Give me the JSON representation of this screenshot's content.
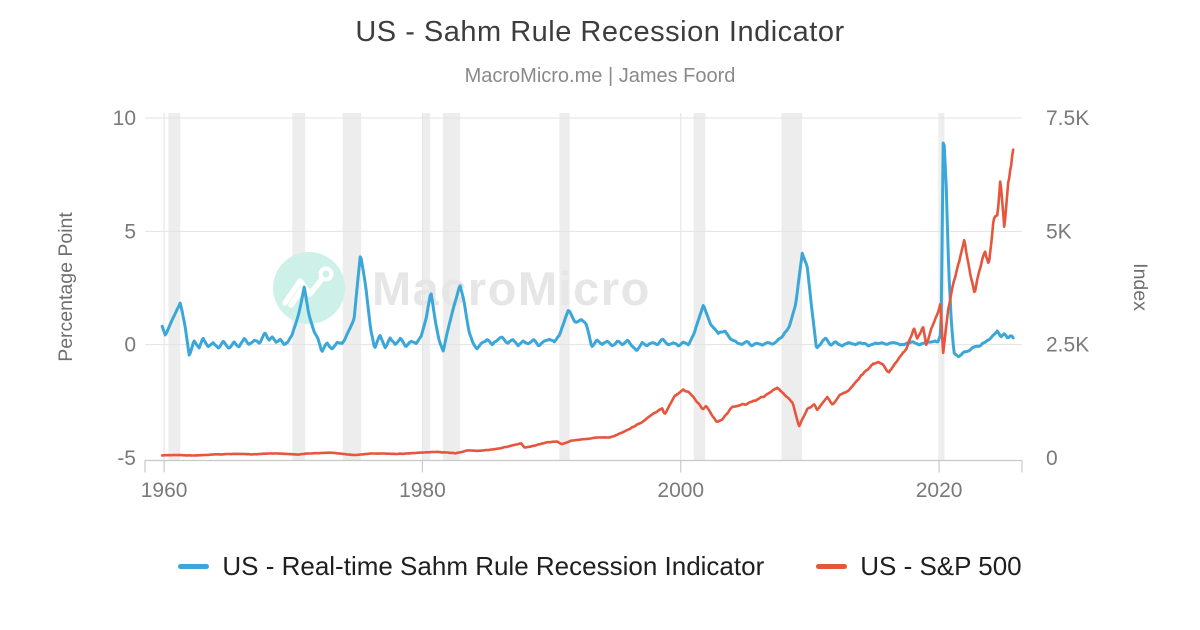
{
  "header": {
    "title": "US - Sahm Rule Recession Indicator",
    "subtitle": "MacroMicro.me | James Foord"
  },
  "watermark": {
    "text": "MacroMicro",
    "icon": "mountain-chart-logo",
    "circle_color": "#cdf1e8",
    "text_color": "#e6e6e6"
  },
  "colors": {
    "sahm_blue": "#3ba7d9",
    "sp500_red": "#e6563d",
    "gridline": "#e3e3e3",
    "recession_band": "#ededed",
    "axis_line": "#c9c9c9",
    "tick_text": "#7a7a7a",
    "axis_title_text": "#6f6f6f"
  },
  "legend": {
    "items": [
      {
        "label": "US - Real-time Sahm Rule Recession Indicator",
        "color": "#3ba7d9"
      },
      {
        "label": "US - S&P 500",
        "color": "#e6563d"
      }
    ]
  },
  "chart_data": {
    "type": "line",
    "title": "US - Sahm Rule Recession Indicator",
    "subtitle": "MacroMicro.me | James Foord",
    "x_axis": {
      "min": 1958.52,
      "max": 2026.42,
      "ticks": [
        {
          "v": 1960,
          "label": "1960"
        },
        {
          "v": 1980,
          "label": "1980"
        },
        {
          "v": 2000,
          "label": "2000"
        },
        {
          "v": 2020,
          "label": "2020"
        }
      ]
    },
    "left_axis": {
      "label": "Percentage Point",
      "min": -5.11,
      "max": 10.22,
      "ticks": [
        {
          "v": 10,
          "label": "10"
        },
        {
          "v": 5,
          "label": "5"
        },
        {
          "v": 0,
          "label": "0"
        },
        {
          "v": -5,
          "label": "-5"
        }
      ]
    },
    "right_axis": {
      "label": "Index",
      "min": -55,
      "max": 7610,
      "ticks": [
        {
          "v": 7500,
          "label": "7.5K"
        },
        {
          "v": 5000,
          "label": "5K"
        },
        {
          "v": 2500,
          "label": "2.5K"
        },
        {
          "v": 0,
          "label": "0"
        }
      ]
    },
    "recession_bands": [
      [
        1960.33,
        1961.25
      ],
      [
        1969.92,
        1970.92
      ],
      [
        1973.83,
        1975.25
      ],
      [
        1980.0,
        1980.6
      ],
      [
        1981.58,
        1982.92
      ],
      [
        1990.6,
        1991.4
      ],
      [
        2001.0,
        2001.9
      ],
      [
        2007.8,
        2009.4
      ],
      [
        2020.08,
        2020.42
      ]
    ],
    "series": [
      {
        "name": "US - Real-time Sahm Rule Recession Indicator",
        "axis": "left",
        "color": "#3ba7d9",
        "stroke_width": 3,
        "noise": 0.045,
        "points": [
          [
            1959.85,
            0.8
          ],
          [
            1960.1,
            0.4
          ],
          [
            1960.5,
            0.9
          ],
          [
            1960.8,
            1.3
          ],
          [
            1961.25,
            1.85
          ],
          [
            1961.6,
            0.9
          ],
          [
            1961.95,
            -0.5
          ],
          [
            1962.3,
            0.2
          ],
          [
            1962.7,
            -0.15
          ],
          [
            1963.0,
            0.3
          ],
          [
            1963.4,
            -0.1
          ],
          [
            1963.8,
            0.1
          ],
          [
            1964.2,
            -0.15
          ],
          [
            1964.6,
            0.15
          ],
          [
            1965.0,
            -0.2
          ],
          [
            1965.4,
            0.1
          ],
          [
            1965.8,
            -0.1
          ],
          [
            1966.2,
            0.25
          ],
          [
            1966.6,
            0.0
          ],
          [
            1967.0,
            0.2
          ],
          [
            1967.4,
            0.05
          ],
          [
            1967.8,
            0.55
          ],
          [
            1968.1,
            0.2
          ],
          [
            1968.4,
            0.35
          ],
          [
            1968.7,
            0.1
          ],
          [
            1969.0,
            0.25
          ],
          [
            1969.3,
            0.0
          ],
          [
            1969.6,
            0.15
          ],
          [
            1969.9,
            0.4
          ],
          [
            1970.4,
            1.3
          ],
          [
            1970.85,
            2.55
          ],
          [
            1971.2,
            1.35
          ],
          [
            1971.6,
            0.6
          ],
          [
            1971.9,
            0.3
          ],
          [
            1972.2,
            -0.3
          ],
          [
            1972.6,
            0.1
          ],
          [
            1973.0,
            -0.2
          ],
          [
            1973.4,
            0.1
          ],
          [
            1973.8,
            0.05
          ],
          [
            1974.2,
            0.5
          ],
          [
            1974.7,
            1.1
          ],
          [
            1975.2,
            4.0
          ],
          [
            1975.6,
            2.6
          ],
          [
            1976.0,
            0.6
          ],
          [
            1976.3,
            -0.15
          ],
          [
            1976.7,
            0.45
          ],
          [
            1977.1,
            -0.15
          ],
          [
            1977.5,
            0.3
          ],
          [
            1977.9,
            0.0
          ],
          [
            1978.3,
            0.3
          ],
          [
            1978.7,
            -0.1
          ],
          [
            1979.1,
            0.15
          ],
          [
            1979.5,
            0.05
          ],
          [
            1979.9,
            0.4
          ],
          [
            1980.3,
            1.2
          ],
          [
            1980.65,
            2.35
          ],
          [
            1981.0,
            1.0
          ],
          [
            1981.3,
            0.15
          ],
          [
            1981.6,
            -0.3
          ],
          [
            1981.9,
            0.5
          ],
          [
            1982.3,
            1.4
          ],
          [
            1982.9,
            2.65
          ],
          [
            1983.2,
            1.95
          ],
          [
            1983.6,
            0.6
          ],
          [
            1983.9,
            0.1
          ],
          [
            1984.2,
            -0.2
          ],
          [
            1984.6,
            0.05
          ],
          [
            1985.0,
            0.25
          ],
          [
            1985.4,
            0.0
          ],
          [
            1985.8,
            0.2
          ],
          [
            1986.2,
            0.35
          ],
          [
            1986.6,
            0.05
          ],
          [
            1987.0,
            0.25
          ],
          [
            1987.4,
            -0.05
          ],
          [
            1987.8,
            0.15
          ],
          [
            1988.2,
            0.0
          ],
          [
            1988.6,
            0.2
          ],
          [
            1989.0,
            -0.05
          ],
          [
            1989.4,
            0.15
          ],
          [
            1989.8,
            0.25
          ],
          [
            1990.2,
            0.15
          ],
          [
            1990.6,
            0.4
          ],
          [
            1991.3,
            1.55
          ],
          [
            1991.8,
            1.0
          ],
          [
            1992.3,
            1.1
          ],
          [
            1992.7,
            0.9
          ],
          [
            1993.1,
            -0.1
          ],
          [
            1993.5,
            0.2
          ],
          [
            1993.9,
            0.0
          ],
          [
            1994.3,
            0.15
          ],
          [
            1994.7,
            -0.05
          ],
          [
            1995.1,
            0.15
          ],
          [
            1995.5,
            0.0
          ],
          [
            1995.9,
            0.2
          ],
          [
            1996.3,
            -0.1
          ],
          [
            1996.6,
            -0.3
          ],
          [
            1997.0,
            0.1
          ],
          [
            1997.4,
            -0.05
          ],
          [
            1997.8,
            0.1
          ],
          [
            1998.2,
            0.0
          ],
          [
            1998.6,
            0.25
          ],
          [
            1999.0,
            0.0
          ],
          [
            1999.4,
            0.1
          ],
          [
            1999.8,
            -0.05
          ],
          [
            2000.2,
            0.1
          ],
          [
            2000.6,
            0.0
          ],
          [
            2001.0,
            0.45
          ],
          [
            2001.75,
            1.75
          ],
          [
            2002.3,
            0.9
          ],
          [
            2002.9,
            0.5
          ],
          [
            2003.4,
            0.6
          ],
          [
            2003.9,
            0.25
          ],
          [
            2004.3,
            0.1
          ],
          [
            2004.7,
            0.0
          ],
          [
            2005.1,
            0.15
          ],
          [
            2005.5,
            -0.05
          ],
          [
            2005.9,
            0.1
          ],
          [
            2006.3,
            0.0
          ],
          [
            2006.7,
            0.1
          ],
          [
            2007.1,
            0.0
          ],
          [
            2007.5,
            0.2
          ],
          [
            2007.9,
            0.4
          ],
          [
            2008.4,
            0.8
          ],
          [
            2008.9,
            1.8
          ],
          [
            2009.4,
            4.05
          ],
          [
            2009.8,
            3.4
          ],
          [
            2010.1,
            1.8
          ],
          [
            2010.5,
            -0.15
          ],
          [
            2010.9,
            0.1
          ],
          [
            2011.2,
            0.3
          ],
          [
            2011.6,
            0.0
          ],
          [
            2012.0,
            0.1
          ],
          [
            2012.5,
            -0.05
          ],
          [
            2013.0,
            0.1
          ],
          [
            2013.5,
            0.0
          ],
          [
            2014.0,
            0.1
          ],
          [
            2014.5,
            -0.05
          ],
          [
            2015.0,
            0.05
          ],
          [
            2015.5,
            0.1
          ],
          [
            2016.0,
            0.0
          ],
          [
            2016.5,
            0.1
          ],
          [
            2017.0,
            0.0
          ],
          [
            2017.5,
            0.05
          ],
          [
            2018.0,
            0.1
          ],
          [
            2018.5,
            0.0
          ],
          [
            2019.0,
            0.1
          ],
          [
            2019.5,
            0.15
          ],
          [
            2019.9,
            0.1
          ],
          [
            2020.15,
            0.5
          ],
          [
            2020.33,
            9.5
          ],
          [
            2020.55,
            7.0
          ],
          [
            2020.75,
            3.2
          ],
          [
            2020.95,
            1.0
          ],
          [
            2021.15,
            -0.35
          ],
          [
            2021.5,
            -0.55
          ],
          [
            2021.9,
            -0.35
          ],
          [
            2022.3,
            -0.25
          ],
          [
            2022.7,
            -0.1
          ],
          [
            2023.1,
            -0.05
          ],
          [
            2023.5,
            0.1
          ],
          [
            2023.9,
            0.25
          ],
          [
            2024.2,
            0.4
          ],
          [
            2024.5,
            0.6
          ],
          [
            2024.8,
            0.35
          ],
          [
            2025.05,
            0.5
          ],
          [
            2025.3,
            0.3
          ],
          [
            2025.55,
            0.4
          ],
          [
            2025.75,
            0.3
          ]
        ]
      },
      {
        "name": "US - S&P 500",
        "axis": "right",
        "color": "#e6563d",
        "stroke_width": 2.6,
        "noise_base": 3,
        "noise_scale": 0.016,
        "points": [
          [
            1959.85,
            58
          ],
          [
            1961,
            66
          ],
          [
            1962.3,
            55
          ],
          [
            1963,
            65
          ],
          [
            1964,
            80
          ],
          [
            1965,
            88
          ],
          [
            1966.1,
            92
          ],
          [
            1966.7,
            78
          ],
          [
            1968,
            100
          ],
          [
            1969,
            98
          ],
          [
            1970.4,
            76
          ],
          [
            1971,
            98
          ],
          [
            1972.9,
            118
          ],
          [
            1974.75,
            64
          ],
          [
            1976,
            101
          ],
          [
            1977,
            98
          ],
          [
            1978,
            90
          ],
          [
            1979,
            102
          ],
          [
            1980.8,
            135
          ],
          [
            1981.3,
            132
          ],
          [
            1982.6,
            105
          ],
          [
            1983.5,
            165
          ],
          [
            1984.5,
            160
          ],
          [
            1985.5,
            190
          ],
          [
            1986.5,
            245
          ],
          [
            1987.65,
            325
          ],
          [
            1987.9,
            230
          ],
          [
            1988.5,
            262
          ],
          [
            1989.7,
            350
          ],
          [
            1990.45,
            365
          ],
          [
            1990.8,
            300
          ],
          [
            1991.5,
            380
          ],
          [
            1992.5,
            415
          ],
          [
            1993.5,
            450
          ],
          [
            1994.5,
            455
          ],
          [
            1995.0,
            500
          ],
          [
            1996.0,
            640
          ],
          [
            1997.0,
            790
          ],
          [
            1997.8,
            960
          ],
          [
            1998.55,
            1110
          ],
          [
            1998.75,
            960
          ],
          [
            1999.5,
            1360
          ],
          [
            2000.2,
            1500
          ],
          [
            2000.7,
            1430
          ],
          [
            2001.0,
            1330
          ],
          [
            2001.7,
            1090
          ],
          [
            2001.95,
            1150
          ],
          [
            2002.75,
            800
          ],
          [
            2003.2,
            850
          ],
          [
            2004.0,
            1120
          ],
          [
            2005.0,
            1190
          ],
          [
            2006.0,
            1290
          ],
          [
            2007.5,
            1550
          ],
          [
            2007.75,
            1480
          ],
          [
            2008.0,
            1400
          ],
          [
            2008.65,
            1230
          ],
          [
            2009.15,
            700
          ],
          [
            2009.8,
            1080
          ],
          [
            2010.35,
            1190
          ],
          [
            2010.55,
            1070
          ],
          [
            2011.35,
            1350
          ],
          [
            2011.75,
            1160
          ],
          [
            2012.3,
            1400
          ],
          [
            2013.0,
            1480
          ],
          [
            2014.0,
            1840
          ],
          [
            2014.9,
            2080
          ],
          [
            2015.55,
            2100
          ],
          [
            2016.1,
            1880
          ],
          [
            2016.8,
            2170
          ],
          [
            2017.5,
            2440
          ],
          [
            2018.05,
            2870
          ],
          [
            2018.3,
            2640
          ],
          [
            2018.75,
            2920
          ],
          [
            2019.0,
            2480
          ],
          [
            2019.6,
            3010
          ],
          [
            2020.12,
            3380
          ],
          [
            2020.3,
            2250
          ],
          [
            2020.7,
            3300
          ],
          [
            2021.2,
            3950
          ],
          [
            2021.95,
            4790
          ],
          [
            2022.4,
            4100
          ],
          [
            2022.75,
            3600
          ],
          [
            2023.1,
            4120
          ],
          [
            2023.55,
            4550
          ],
          [
            2023.85,
            4230
          ],
          [
            2024.2,
            5250
          ],
          [
            2024.55,
            5450
          ],
          [
            2024.75,
            6150
          ],
          [
            2025.05,
            5050
          ],
          [
            2025.35,
            6050
          ],
          [
            2025.55,
            6450
          ],
          [
            2025.78,
            6900
          ]
        ]
      }
    ]
  }
}
